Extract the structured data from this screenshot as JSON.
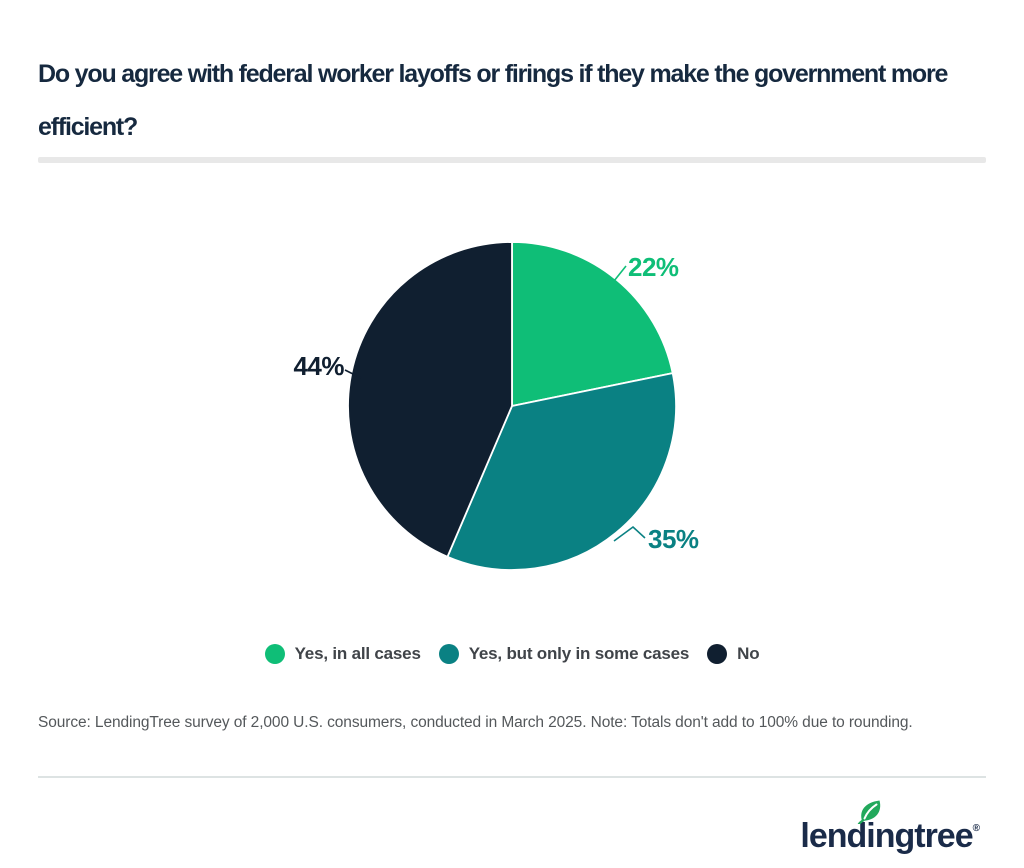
{
  "header": {
    "title": "Do you agree with federal worker layoffs or firings if they make the government more efficient?"
  },
  "chart_data": {
    "type": "pie",
    "title": "Do you agree with federal worker layoffs or firings if they make the government more efficient?",
    "labels": [
      "Yes, in all cases",
      "Yes, but only in some cases",
      "No"
    ],
    "values": [
      22,
      35,
      44
    ],
    "value_labels": [
      "22%",
      "35%",
      "44%"
    ],
    "colors": [
      "#0fbe77",
      "#0a8183",
      "#101f30"
    ],
    "unit": "percent",
    "start_angle": "12 o'clock",
    "direction": "clockwise",
    "legend_position": "bottom",
    "slice_border_color": "#ffffff"
  },
  "footer": {
    "source": "Source: LendingTree survey of 2,000 U.S. consumers, conducted in March 2025. Note: Totals don't add to 100% due to rounding.",
    "logo_text": "lendingtree",
    "registered_mark": "®",
    "logo_text_color": "#1a2b49",
    "leaf_color": "#22a95c"
  }
}
